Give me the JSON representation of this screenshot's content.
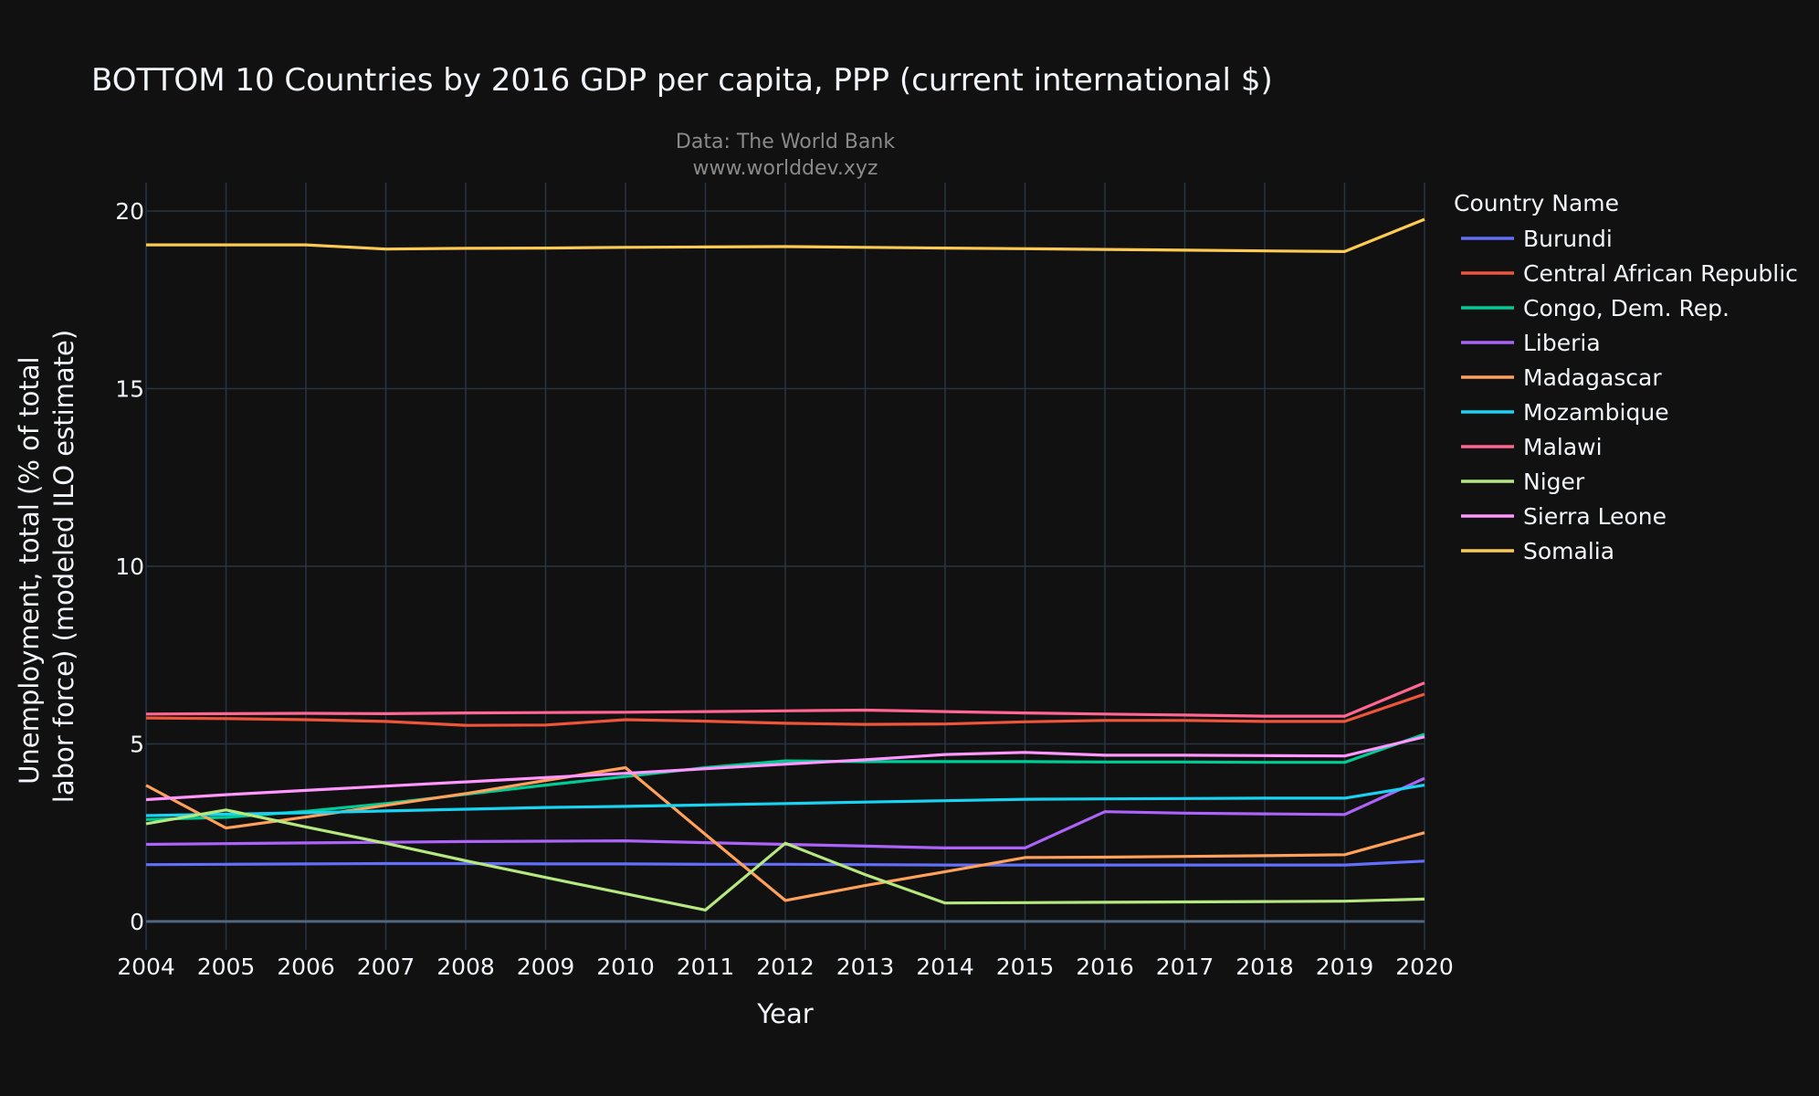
{
  "chart_data": {
    "type": "line",
    "title": "BOTTOM 10 Countries by 2016 GDP per capita, PPP (current international $)",
    "subtitle_lines": [
      "Data: The World Bank",
      "www.worlddev.xyz"
    ],
    "xlabel": "Year",
    "ylabel_lines": [
      "Unemployment, total (% of total",
      "labor force) (modeled ILO estimate)"
    ],
    "legend_title": "Country Name",
    "legend_position": "right",
    "grid": true,
    "xlim": [
      2004,
      2020
    ],
    "ylim": [
      -0.8,
      20.8
    ],
    "x": [
      2004,
      2005,
      2006,
      2007,
      2008,
      2009,
      2010,
      2011,
      2012,
      2013,
      2014,
      2015,
      2016,
      2017,
      2018,
      2019,
      2020
    ],
    "x_ticks": [
      2004,
      2005,
      2006,
      2007,
      2008,
      2009,
      2010,
      2011,
      2012,
      2013,
      2014,
      2015,
      2016,
      2017,
      2018,
      2019,
      2020
    ],
    "y_ticks": [
      0,
      5,
      10,
      15,
      20
    ],
    "series": [
      {
        "name": "Burundi",
        "color": "#636efa",
        "values": [
          1.6,
          1.61,
          1.62,
          1.63,
          1.63,
          1.62,
          1.62,
          1.61,
          1.61,
          1.6,
          1.59,
          1.59,
          1.59,
          1.59,
          1.59,
          1.59,
          1.7
        ]
      },
      {
        "name": "Central African Republic",
        "color": "#ef553b",
        "values": [
          5.73,
          5.71,
          5.68,
          5.63,
          5.52,
          5.53,
          5.68,
          5.64,
          5.58,
          5.55,
          5.56,
          5.62,
          5.66,
          5.66,
          5.63,
          5.63,
          6.4
        ]
      },
      {
        "name": "Congo, Dem. Rep.",
        "color": "#00cc96",
        "values": [
          2.87,
          2.93,
          3.1,
          3.32,
          3.58,
          3.84,
          4.08,
          4.33,
          4.52,
          4.5,
          4.5,
          4.5,
          4.49,
          4.49,
          4.48,
          4.48,
          5.27
        ]
      },
      {
        "name": "Liberia",
        "color": "#ab63fa",
        "values": [
          2.17,
          2.19,
          2.21,
          2.23,
          2.25,
          2.26,
          2.27,
          2.22,
          2.17,
          2.12,
          2.07,
          2.07,
          3.09,
          3.05,
          3.03,
          3.01,
          4.03
        ]
      },
      {
        "name": "Madagascar",
        "color": "#ffa15a",
        "values": [
          3.83,
          2.63,
          2.94,
          3.27,
          3.6,
          3.97,
          4.33,
          2.45,
          0.59,
          1.01,
          1.4,
          1.8,
          1.81,
          1.83,
          1.85,
          1.88,
          2.5
        ]
      },
      {
        "name": "Mozambique",
        "color": "#19d3f3",
        "values": [
          2.98,
          3.02,
          3.06,
          3.11,
          3.16,
          3.21,
          3.24,
          3.28,
          3.32,
          3.36,
          3.4,
          3.44,
          3.45,
          3.46,
          3.47,
          3.47,
          3.84
        ]
      },
      {
        "name": "Malawi",
        "color": "#ff6692",
        "values": [
          5.84,
          5.85,
          5.86,
          5.85,
          5.87,
          5.88,
          5.89,
          5.91,
          5.93,
          5.95,
          5.91,
          5.87,
          5.84,
          5.81,
          5.78,
          5.78,
          6.72
        ]
      },
      {
        "name": "Niger",
        "color": "#b6e880",
        "values": [
          2.75,
          3.14,
          2.66,
          2.2,
          1.71,
          1.24,
          0.78,
          0.32,
          2.2,
          1.32,
          0.52,
          0.53,
          0.54,
          0.55,
          0.56,
          0.57,
          0.63
        ]
      },
      {
        "name": "Sierra Leone",
        "color": "#ff97ff",
        "values": [
          3.43,
          3.57,
          3.69,
          3.81,
          3.93,
          4.05,
          4.17,
          4.3,
          4.43,
          4.55,
          4.7,
          4.76,
          4.68,
          4.68,
          4.67,
          4.66,
          5.2
        ]
      },
      {
        "name": "Somalia",
        "color": "#fecb52",
        "values": [
          19.05,
          19.05,
          19.05,
          18.93,
          18.95,
          18.96,
          18.98,
          18.99,
          19.0,
          18.98,
          18.96,
          18.94,
          18.92,
          18.9,
          18.88,
          18.86,
          19.77
        ]
      }
    ]
  }
}
